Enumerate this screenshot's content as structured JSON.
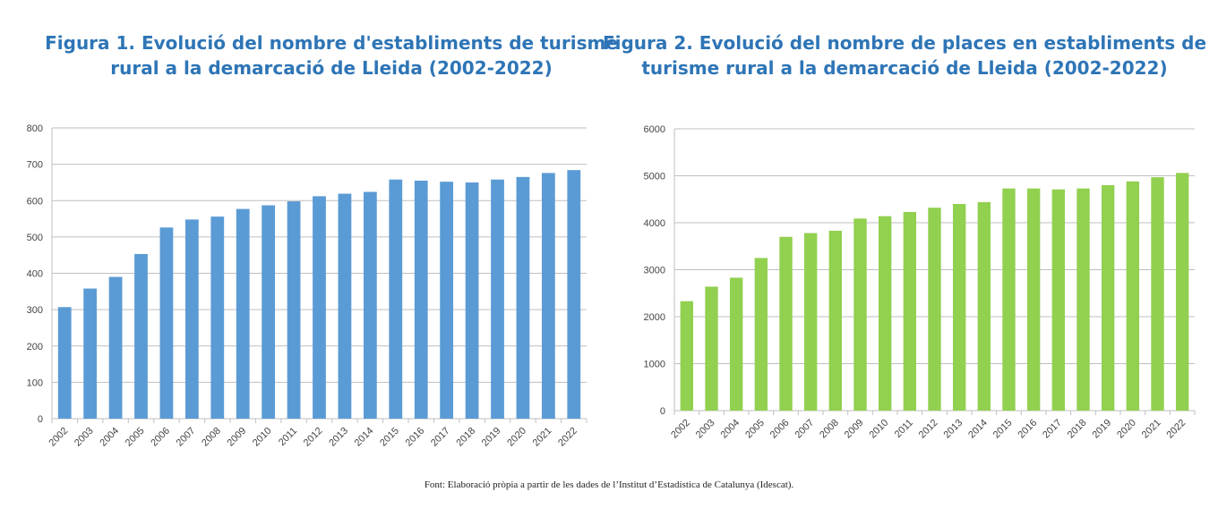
{
  "source_note": "Font: Elaboració pròpia a partir de les dades de l’Institut d’Estadística de Catalunya (Idescat).",
  "chart_data": [
    {
      "type": "bar",
      "title": "Figura 1. Evolució del nombre d'establiments de turisme rural a la demarcació de Lleida (2002-2022)",
      "xlabel": "",
      "ylabel": "",
      "ylim": [
        0,
        800
      ],
      "yticks": [
        0,
        100,
        200,
        300,
        400,
        500,
        600,
        700,
        800
      ],
      "grid": true,
      "color": "#5b9bd5",
      "categories": [
        "2002",
        "2003",
        "2004",
        "2005",
        "2006",
        "2007",
        "2008",
        "2009",
        "2010",
        "2011",
        "2012",
        "2013",
        "2014",
        "2015",
        "2016",
        "2017",
        "2018",
        "2019",
        "2020",
        "2021",
        "2022"
      ],
      "values": [
        307,
        358,
        390,
        453,
        526,
        548,
        556,
        577,
        587,
        598,
        612,
        619,
        624,
        658,
        655,
        652,
        650,
        658,
        665,
        676,
        684
      ]
    },
    {
      "type": "bar",
      "title": "Figura 2. Evolució del nombre de places en establiments de turisme rural a la demarcació de Lleida (2002-2022)",
      "xlabel": "",
      "ylabel": "",
      "ylim": [
        0,
        6000
      ],
      "yticks": [
        0,
        1000,
        2000,
        3000,
        4000,
        5000,
        6000
      ],
      "grid": true,
      "color": "#92d050",
      "categories": [
        "2002",
        "2003",
        "2004",
        "2005",
        "2006",
        "2007",
        "2008",
        "2009",
        "2010",
        "2011",
        "2012",
        "2013",
        "2014",
        "2015",
        "2016",
        "2017",
        "2018",
        "2019",
        "2020",
        "2021",
        "2022"
      ],
      "values": [
        2330,
        2640,
        2830,
        3250,
        3700,
        3780,
        3830,
        4090,
        4140,
        4230,
        4320,
        4400,
        4440,
        4730,
        4730,
        4710,
        4730,
        4800,
        4880,
        4970,
        5060
      ]
    }
  ]
}
